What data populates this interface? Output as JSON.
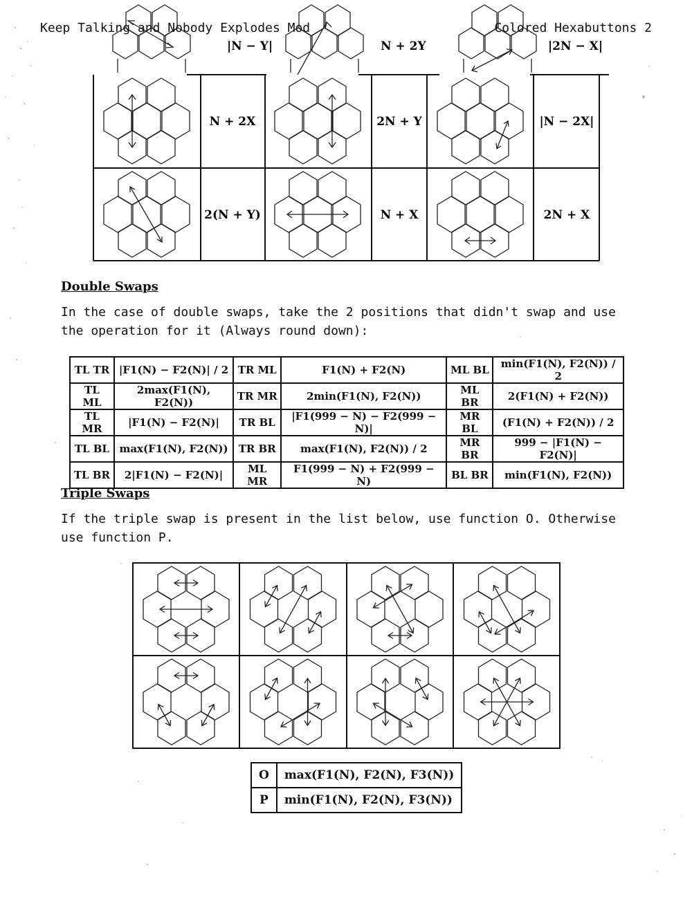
{
  "header": {
    "left": "Keep Talking and Nobody Explodes Mod",
    "right": "Colored Hexabuttons 2"
  },
  "single_swaps": {
    "rows": [
      [
        {
          "swap": "TL-BR",
          "formula": "|N − Y|"
        },
        {
          "swap": "TR-BL",
          "formula": "N + 2Y"
        },
        {
          "swap": "MR-BL",
          "formula": "|2N − X|"
        }
      ],
      [
        {
          "swap": "TL-BL",
          "formula": "N + 2X"
        },
        {
          "swap": "TR-BR",
          "formula": "2N + Y"
        },
        {
          "swap": "MR-BR",
          "formula": "|N − 2X|"
        }
      ],
      [
        {
          "swap": "TL-BR",
          "formula": "2(N + Y)"
        },
        {
          "swap": "ML-MR",
          "formula": "N + X"
        },
        {
          "swap": "BL-BR",
          "formula": "2N + X"
        }
      ]
    ]
  },
  "double_swaps": {
    "heading": "Double Swaps",
    "text": "In the case of double swaps, take the 2 positions that didn't swap and use the operation for it (Always round down):",
    "rows": [
      [
        "TL TR",
        "|F1(N) − F2(N)| / 2",
        "TR ML",
        "F1(N) + F2(N)",
        "ML BL",
        "min(F1(N), F2(N)) / 2"
      ],
      [
        "TL ML",
        "2max(F1(N), F2(N))",
        "TR MR",
        "2min(F1(N), F2(N))",
        "ML BR",
        "2(F1(N) + F2(N))"
      ],
      [
        "TL MR",
        "|F1(N) − F2(N)|",
        "TR BL",
        "|F1(999 − N) − F2(999 − N)|",
        "MR BL",
        "(F1(N) + F2(N)) / 2"
      ],
      [
        "TL BL",
        "max(F1(N), F2(N))",
        "TR BR",
        "max(F1(N), F2(N)) / 2",
        "MR BR",
        "999 − |F1(N) − F2(N)|"
      ],
      [
        "TL BR",
        "2|F1(N) − F2(N)|",
        "ML MR",
        "F1(999 − N) + F2(999 − N)",
        "BL BR",
        "min(F1(N), F2(N))"
      ]
    ]
  },
  "triple_swaps": {
    "heading": "Triple Swaps",
    "text": "If the triple swap is present in the list below, use function O. Otherwise use function P.",
    "swaps": [
      [
        "TL-TR",
        "ML-MR",
        "BL-BR"
      ],
      [
        "TL-ML",
        "TR-BL",
        "MR-BR"
      ],
      [
        "TL-BR",
        "TR-ML",
        "BL-BR"
      ],
      [
        "TL-BR",
        "ML-BL",
        "MR-BL"
      ],
      [
        "TL-TR",
        "ML-BL",
        "MR-BR"
      ],
      [
        "TL-ML",
        "TR-BR",
        "MR-BL"
      ],
      [
        "TL-BL",
        "TR-MR",
        "ML-BR"
      ],
      [
        "TL-BR",
        "TR-BL",
        "ML-MR"
      ]
    ],
    "functions": [
      {
        "name": "O",
        "formula": "max(F1(N), F2(N), F3(N))"
      },
      {
        "name": "P",
        "formula": "min(F1(N), F2(N), F3(N))"
      }
    ]
  }
}
